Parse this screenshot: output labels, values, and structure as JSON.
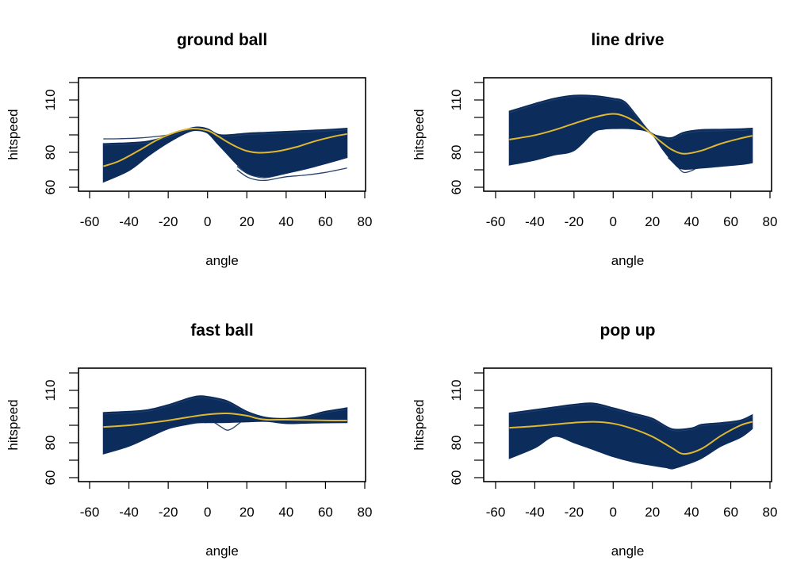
{
  "colors": {
    "band": "#0c2c5c",
    "mean": "#e0b830",
    "axis": "#000000"
  },
  "chart_data": [
    {
      "type": "line",
      "title": "ground ball",
      "xlabel": "angle",
      "ylabel": "hitspeed",
      "xlim": [
        -65,
        81
      ],
      "ylim": [
        57,
        123
      ],
      "xticks": [
        -60,
        -40,
        -20,
        0,
        20,
        40,
        60,
        80
      ],
      "yticks": [
        60,
        70,
        80,
        90,
        100,
        110,
        120
      ],
      "ytick_labels": [
        "60",
        "80",
        "110"
      ],
      "ytick_label_values": [
        60,
        80,
        110
      ],
      "series": [
        {
          "name": "band-upper",
          "x": [
            -53,
            -40,
            -30,
            -20,
            -10,
            -5,
            0,
            5,
            10,
            20,
            30,
            40,
            50,
            60,
            71
          ],
          "y": [
            85,
            85.5,
            86.5,
            89.5,
            93.5,
            94.5,
            93.5,
            90.5,
            90,
            91,
            91.5,
            92,
            92.5,
            93,
            93.8
          ]
        },
        {
          "name": "band-lower",
          "x": [
            -53,
            -40,
            -30,
            -20,
            -10,
            -5,
            0,
            5,
            10,
            15,
            20,
            25,
            30,
            35,
            40,
            50,
            60,
            71
          ],
          "y": [
            63,
            69.5,
            78,
            85.5,
            91.5,
            92.5,
            91,
            85,
            79,
            73,
            68.5,
            66.5,
            66,
            67,
            68,
            70.5,
            73.5,
            77
          ]
        },
        {
          "name": "outlier-top",
          "x": [
            -53,
            -45,
            -35,
            -25,
            -20
          ],
          "y": [
            87.7,
            87.8,
            88.2,
            89.2,
            90
          ]
        },
        {
          "name": "outlier-low-1",
          "x": [
            15,
            20,
            25,
            30,
            35,
            40,
            50,
            60,
            71
          ],
          "y": [
            70,
            66,
            64.2,
            64,
            65,
            66,
            67,
            68.5,
            71
          ]
        },
        {
          "name": "outlier-low-2",
          "x": [
            15,
            20,
            25,
            30,
            40,
            50,
            60,
            71
          ],
          "y": [
            72,
            68,
            66,
            65.5,
            68,
            71,
            74,
            78
          ]
        },
        {
          "name": "mean",
          "x": [
            -53,
            -45,
            -35,
            -25,
            -15,
            -8,
            0,
            5,
            10,
            15,
            20,
            26,
            35,
            45,
            55,
            65,
            71
          ],
          "y": [
            72,
            75,
            81,
            87.5,
            92,
            93.6,
            92.5,
            89.5,
            86,
            83,
            80.8,
            79.8,
            80.5,
            83,
            86.5,
            89.3,
            90.5
          ]
        }
      ]
    },
    {
      "type": "line",
      "title": "line drive",
      "xlabel": "angle",
      "ylabel": "hitspeed",
      "xlim": [
        -65,
        81
      ],
      "ylim": [
        57,
        123
      ],
      "xticks": [
        -60,
        -40,
        -20,
        0,
        20,
        40,
        60,
        80
      ],
      "yticks": [
        60,
        70,
        80,
        90,
        100,
        110,
        120
      ],
      "ytick_labels": [
        "60",
        "80",
        "110"
      ],
      "ytick_label_values": [
        60,
        80,
        110
      ],
      "series": [
        {
          "name": "band-upper",
          "x": [
            -53,
            -40,
            -30,
            -20,
            -10,
            0,
            6,
            12,
            19,
            25,
            30,
            36,
            45,
            55,
            65,
            71
          ],
          "y": [
            103.6,
            108,
            111,
            112.7,
            112.5,
            111,
            109,
            101,
            91.5,
            89,
            88.5,
            91.5,
            93,
            93.2,
            93.5,
            93.8
          ]
        },
        {
          "name": "band-lower",
          "x": [
            -53,
            -40,
            -30,
            -20,
            -10,
            -5,
            0,
            10,
            19,
            25,
            30,
            35,
            45,
            55,
            65,
            71
          ],
          "y": [
            72.7,
            75.5,
            78.5,
            81,
            91.4,
            93.2,
            93.6,
            93.4,
            91,
            82,
            75,
            70.5,
            71,
            72,
            73,
            74
          ]
        },
        {
          "name": "outlier-low-1",
          "x": [
            28,
            33,
            36,
            40,
            45,
            55,
            65,
            71
          ],
          "y": [
            77,
            71.5,
            68.5,
            69.5,
            72,
            73.5,
            74.5,
            75.5
          ]
        },
        {
          "name": "mean",
          "x": [
            -53,
            -40,
            -30,
            -20,
            -10,
            -1,
            5,
            12,
            19,
            25,
            30,
            36,
            45,
            55,
            65,
            71
          ],
          "y": [
            87.3,
            89.8,
            92.8,
            96.5,
            100,
            102,
            101,
            97,
            91,
            85.5,
            81.5,
            79.2,
            81,
            85,
            88,
            89.5
          ]
        }
      ]
    },
    {
      "type": "line",
      "title": "fast ball",
      "xlabel": "angle",
      "ylabel": "hitspeed",
      "xlim": [
        -65,
        81
      ],
      "ylim": [
        57,
        123
      ],
      "xticks": [
        -60,
        -40,
        -20,
        0,
        20,
        40,
        60,
        80
      ],
      "yticks": [
        60,
        70,
        80,
        90,
        100,
        110,
        120
      ],
      "ytick_labels": [
        "60",
        "80",
        "110"
      ],
      "ytick_label_values": [
        60,
        80,
        110
      ],
      "series": [
        {
          "name": "band-upper",
          "x": [
            -53,
            -40,
            -30,
            -20,
            -10,
            -5,
            0,
            10,
            20,
            30,
            40,
            50,
            60,
            71
          ],
          "y": [
            97.3,
            98,
            99,
            101.8,
            105.5,
            106.8,
            106.5,
            104,
            98,
            94.5,
            94,
            95.2,
            98,
            100
          ]
        },
        {
          "name": "band-lower",
          "x": [
            -53,
            -40,
            -30,
            -20,
            -10,
            -5,
            0,
            10,
            20,
            30,
            40,
            50,
            60,
            71
          ],
          "y": [
            73.6,
            78,
            83,
            88,
            90.5,
            91.4,
            91.5,
            91.6,
            92,
            92.2,
            91,
            91.2,
            91.4,
            91.5
          ]
        },
        {
          "name": "outlier-dip",
          "x": [
            3,
            7,
            10,
            13,
            17
          ],
          "y": [
            92,
            89,
            87.2,
            88.5,
            92
          ]
        },
        {
          "name": "mean",
          "x": [
            -53,
            -40,
            -30,
            -20,
            -10,
            0,
            10,
            20,
            25,
            30,
            40,
            50,
            60,
            71
          ],
          "y": [
            89,
            90,
            91.3,
            92.8,
            94.6,
            96.2,
            96.8,
            95.5,
            94,
            93.2,
            93.2,
            93,
            92.8,
            92.7
          ]
        }
      ]
    },
    {
      "type": "line",
      "title": "pop up",
      "xlabel": "angle",
      "ylabel": "hitspeed",
      "xlim": [
        -65,
        81
      ],
      "ylim": [
        57,
        123
      ],
      "xticks": [
        -60,
        -40,
        -20,
        0,
        20,
        40,
        60,
        80
      ],
      "yticks": [
        60,
        70,
        80,
        90,
        100,
        110,
        120
      ],
      "ytick_labels": [
        "60",
        "80",
        "110"
      ],
      "ytick_label_values": [
        60,
        80,
        110
      ],
      "series": [
        {
          "name": "band-upper",
          "x": [
            -53,
            -40,
            -30,
            -20,
            -10,
            0,
            10,
            20,
            30,
            40,
            45,
            55,
            65,
            71
          ],
          "y": [
            97,
            99,
            100.5,
            102,
            102.7,
            100,
            97,
            94,
            88,
            88.5,
            90.5,
            91.5,
            93,
            96
          ]
        },
        {
          "name": "band-lower",
          "x": [
            -53,
            -40,
            -30,
            -20,
            -10,
            0,
            10,
            20,
            30,
            36,
            45,
            55,
            65,
            71
          ],
          "y": [
            71,
            77,
            83.6,
            80,
            76,
            72,
            69,
            67,
            65.5,
            67,
            71,
            78,
            83,
            88
          ]
        },
        {
          "name": "outlier-low-1",
          "x": [
            -35,
            -25,
            -15,
            -5,
            5,
            15,
            25,
            30,
            35
          ],
          "y": [
            86,
            83,
            79,
            75,
            71,
            68,
            66.5,
            65,
            67
          ]
        },
        {
          "name": "mean",
          "x": [
            -53,
            -40,
            -30,
            -20,
            -10,
            0,
            10,
            20,
            30,
            36,
            45,
            55,
            65,
            71
          ],
          "y": [
            88.6,
            89.5,
            90.5,
            91.5,
            92,
            91,
            88,
            83.5,
            77,
            73.6,
            76.5,
            84,
            90,
            92
          ]
        }
      ]
    }
  ]
}
